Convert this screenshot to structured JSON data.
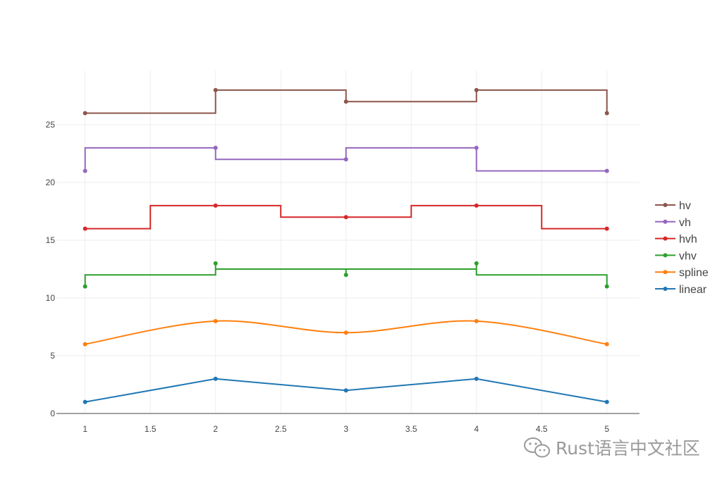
{
  "chart_data": {
    "type": "line",
    "x": [
      1,
      2,
      3,
      4,
      5
    ],
    "xticks": [
      1,
      1.5,
      2,
      2.5,
      3,
      3.5,
      4,
      4.5,
      5
    ],
    "xtick_labels": [
      "1",
      "1.5",
      "2",
      "2.5",
      "3",
      "3.5",
      "4",
      "4.5",
      "5"
    ],
    "yticks": [
      0,
      5,
      10,
      15,
      20,
      25
    ],
    "ytick_labels": [
      "0",
      "5",
      "10",
      "15",
      "20",
      "25"
    ],
    "xlim": [
      0.78,
      5.25
    ],
    "ylim": [
      0,
      29.7
    ],
    "grid": true,
    "legend_position": "right",
    "series": [
      {
        "name": "linear",
        "shape": "linear",
        "color": "#1f77b4",
        "values": [
          1,
          3,
          2,
          3,
          1
        ]
      },
      {
        "name": "spline",
        "shape": "spline",
        "color": "#ff7f0e",
        "values": [
          6,
          8,
          7,
          8,
          6
        ]
      },
      {
        "name": "vhv",
        "shape": "vhv",
        "color": "#2ca02c",
        "values": [
          11,
          13,
          12,
          13,
          11
        ]
      },
      {
        "name": "hvh",
        "shape": "hvh",
        "color": "#d62728",
        "values": [
          16,
          18,
          17,
          18,
          16
        ]
      },
      {
        "name": "vh",
        "shape": "vh",
        "color": "#9467bd",
        "values": [
          21,
          23,
          22,
          23,
          21
        ]
      },
      {
        "name": "hv",
        "shape": "hv",
        "color": "#8c564b",
        "values": [
          26,
          28,
          27,
          28,
          26
        ]
      }
    ],
    "legend_order": [
      "hv",
      "vh",
      "hvh",
      "vhv",
      "spline",
      "linear"
    ]
  },
  "watermark": {
    "icon": "wechat-icon",
    "text": "Rust语言中文社区"
  }
}
